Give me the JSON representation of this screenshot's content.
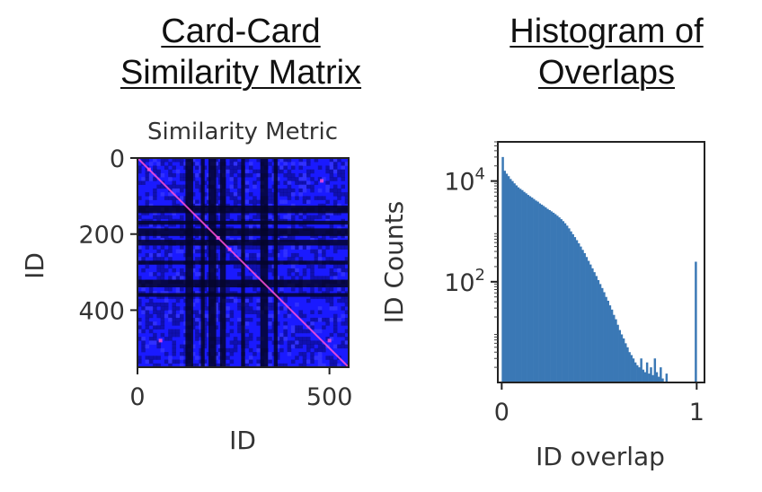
{
  "titles": {
    "left_line1": "Card-Card",
    "left_line2": "Similarity Matrix",
    "right_line1": "Histogram of",
    "right_line2": "Overlaps"
  },
  "chart_data": [
    {
      "type": "heatmap",
      "title": "Similarity Metric",
      "xlabel": "ID",
      "ylabel": "ID",
      "xlim": [
        0,
        550
      ],
      "ylim": [
        550,
        0
      ],
      "x_ticks": [
        0,
        500
      ],
      "y_ticks": [
        0,
        200,
        400
      ],
      "colors": {
        "low": "#05052a",
        "mid": "#1a1aff",
        "high": "#ff4fd8"
      },
      "dark_bands": [
        [
          125,
          145
        ],
        [
          165,
          175
        ],
        [
          185,
          205
        ],
        [
          215,
          230
        ],
        [
          270,
          280
        ],
        [
          320,
          340
        ],
        [
          355,
          365
        ]
      ]
    },
    {
      "type": "bar",
      "title": "",
      "xlabel": "ID overlap",
      "ylabel": "ID Counts",
      "yscale": "log",
      "xlim": [
        -0.02,
        1.04
      ],
      "ylim": [
        1,
        60000
      ],
      "x_ticks": [
        0,
        1
      ],
      "y_ticks": [
        {
          "value": 100,
          "base": "10",
          "exp": "2"
        },
        {
          "value": 10000,
          "base": "10",
          "exp": "4"
        }
      ],
      "color": "#3a78b5",
      "bin_width": 0.01,
      "bins_x": [
        0.0,
        0.01,
        0.02,
        0.03,
        0.04,
        0.05,
        0.06,
        0.07,
        0.08,
        0.09,
        0.1,
        0.11,
        0.12,
        0.13,
        0.14,
        0.15,
        0.16,
        0.17,
        0.18,
        0.19,
        0.2,
        0.21,
        0.22,
        0.23,
        0.24,
        0.25,
        0.26,
        0.27,
        0.28,
        0.29,
        0.3,
        0.31,
        0.32,
        0.33,
        0.34,
        0.35,
        0.36,
        0.37,
        0.38,
        0.39,
        0.4,
        0.41,
        0.42,
        0.43,
        0.44,
        0.45,
        0.46,
        0.47,
        0.48,
        0.49,
        0.5,
        0.51,
        0.52,
        0.53,
        0.54,
        0.55,
        0.56,
        0.57,
        0.58,
        0.59,
        0.6,
        0.61,
        0.62,
        0.63,
        0.64,
        0.65,
        0.66,
        0.67,
        0.68,
        0.69,
        0.7,
        0.71,
        0.72,
        0.73,
        0.74,
        0.75,
        0.76,
        0.77,
        0.78,
        0.79,
        0.8,
        0.81,
        0.82,
        0.83,
        0.84,
        0.85,
        0.86,
        0.87,
        0.88,
        0.89,
        0.9,
        0.91,
        0.92,
        0.93,
        0.94,
        0.95,
        0.96,
        0.97,
        0.98,
        0.99
      ],
      "counts": [
        30000,
        16000,
        14000,
        12500,
        11000,
        10000,
        9000,
        8200,
        7500,
        7000,
        6600,
        6100,
        5700,
        5300,
        5000,
        4700,
        4400,
        4100,
        3900,
        3600,
        3400,
        3200,
        3000,
        2800,
        2650,
        2500,
        2350,
        2200,
        2050,
        1900,
        1750,
        1600,
        1450,
        1300,
        1150,
        1000,
        880,
        770,
        670,
        580,
        500,
        430,
        370,
        310,
        260,
        220,
        185,
        155,
        130,
        108,
        90,
        75,
        62,
        50,
        42,
        34,
        28,
        22,
        18,
        14,
        11,
        9,
        7.5,
        6,
        5,
        4,
        3.5,
        3,
        2.5,
        2.2,
        2,
        3,
        1.8,
        1.6,
        2.5,
        1.5,
        2,
        1.4,
        3,
        1.6,
        1.3,
        2,
        1.2,
        1,
        1.5,
        1,
        1,
        0,
        0,
        0,
        0,
        0,
        0,
        0,
        0,
        0,
        0,
        0,
        0,
        250
      ]
    }
  ]
}
